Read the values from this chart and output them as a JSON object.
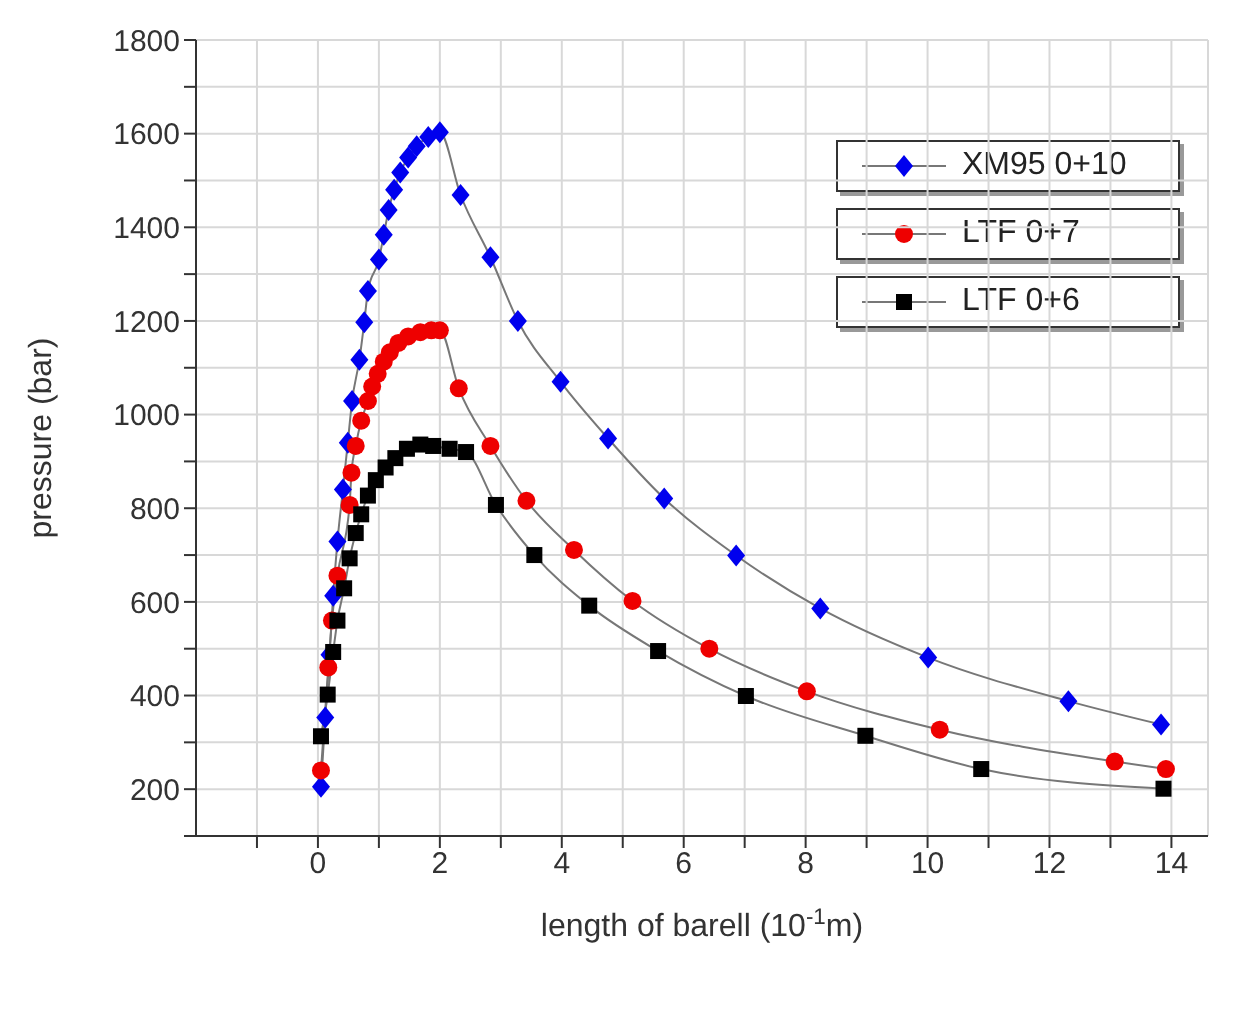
{
  "chart_data": {
    "type": "line",
    "xlabel": "length of barell (10$^{-1}$m)",
    "ylabel": "pressure (bar)",
    "xlim": [
      -2,
      14.6
    ],
    "ylim": [
      100,
      1800
    ],
    "xticks": [
      {
        "value": -1,
        "label": null
      },
      0,
      {
        "value": 1,
        "label": null
      },
      2,
      {
        "value": 3,
        "label": null
      },
      4,
      {
        "value": 5,
        "label": null
      },
      6,
      {
        "value": 7,
        "label": null
      },
      8,
      {
        "value": 9,
        "label": null
      },
      10,
      {
        "value": 11,
        "label": null
      },
      12,
      {
        "value": 13,
        "label": null
      },
      14
    ],
    "yticks": [
      {
        "value": 100,
        "label": null
      },
      200,
      {
        "value": 300,
        "label": null
      },
      400,
      {
        "value": 500,
        "label": null
      },
      600,
      {
        "value": 700,
        "label": null
      },
      800,
      {
        "value": 900,
        "label": null
      },
      1000,
      {
        "value": 1100,
        "label": null
      },
      1200,
      {
        "value": 1300,
        "label": null
      },
      1400,
      {
        "value": 1500,
        "label": null
      },
      1600,
      {
        "value": 1700,
        "label": null
      },
      1800
    ],
    "grid": true,
    "legend": "top right",
    "line_style": "solid",
    "series": [
      {
        "name": "XM95 0+10",
        "color": "#0000ee",
        "marker": "diamond",
        "x": [
          0.05,
          0.12,
          0.19,
          0.25,
          0.32,
          0.41,
          0.49,
          0.56,
          0.68,
          0.76,
          0.82,
          1.0,
          1.08,
          1.16,
          1.25,
          1.35,
          1.48,
          1.62,
          1.81,
          2.0,
          2.34,
          2.83,
          3.28,
          3.98,
          4.76,
          5.68,
          6.86,
          8.24,
          10.01,
          12.31,
          13.83
        ],
        "values": [
          205,
          353,
          487,
          613,
          729,
          840,
          940,
          1029,
          1117,
          1197,
          1264,
          1331,
          1384,
          1437,
          1480,
          1517,
          1549,
          1573,
          1593,
          1603,
          1469,
          1336,
          1200,
          1070,
          949,
          821,
          699,
          586,
          481,
          388,
          338
        ]
      },
      {
        "name": "LTF 0+7",
        "color": "#ee0000",
        "marker": "circle",
        "x": [
          0.05,
          0.17,
          0.23,
          0.32,
          0.52,
          0.55,
          0.62,
          0.71,
          0.82,
          0.89,
          0.98,
          1.08,
          1.18,
          1.32,
          1.48,
          1.68,
          1.86,
          2.0,
          2.31,
          2.83,
          3.42,
          4.2,
          5.16,
          6.42,
          8.02,
          10.2,
          13.07,
          13.91
        ],
        "values": [
          240,
          460,
          560,
          656,
          807,
          876,
          933,
          987,
          1029,
          1060,
          1087,
          1113,
          1133,
          1153,
          1167,
          1176,
          1180,
          1180,
          1056,
          933,
          816,
          711,
          602,
          500,
          409,
          327,
          259,
          243
        ]
      },
      {
        "name": "LTF 0+6",
        "color": "#000000",
        "marker": "square",
        "x": [
          0.05,
          0.16,
          0.25,
          0.32,
          0.43,
          0.52,
          0.62,
          0.71,
          0.82,
          0.95,
          1.11,
          1.27,
          1.46,
          1.68,
          1.89,
          2.16,
          2.43,
          2.92,
          3.55,
          4.45,
          5.58,
          7.02,
          8.98,
          10.88,
          13.87
        ],
        "values": [
          313,
          402,
          493,
          560,
          629,
          693,
          747,
          787,
          827,
          860,
          887,
          907,
          927,
          936,
          933,
          927,
          920,
          807,
          700,
          592,
          495,
          399,
          314,
          243,
          201
        ]
      }
    ]
  }
}
